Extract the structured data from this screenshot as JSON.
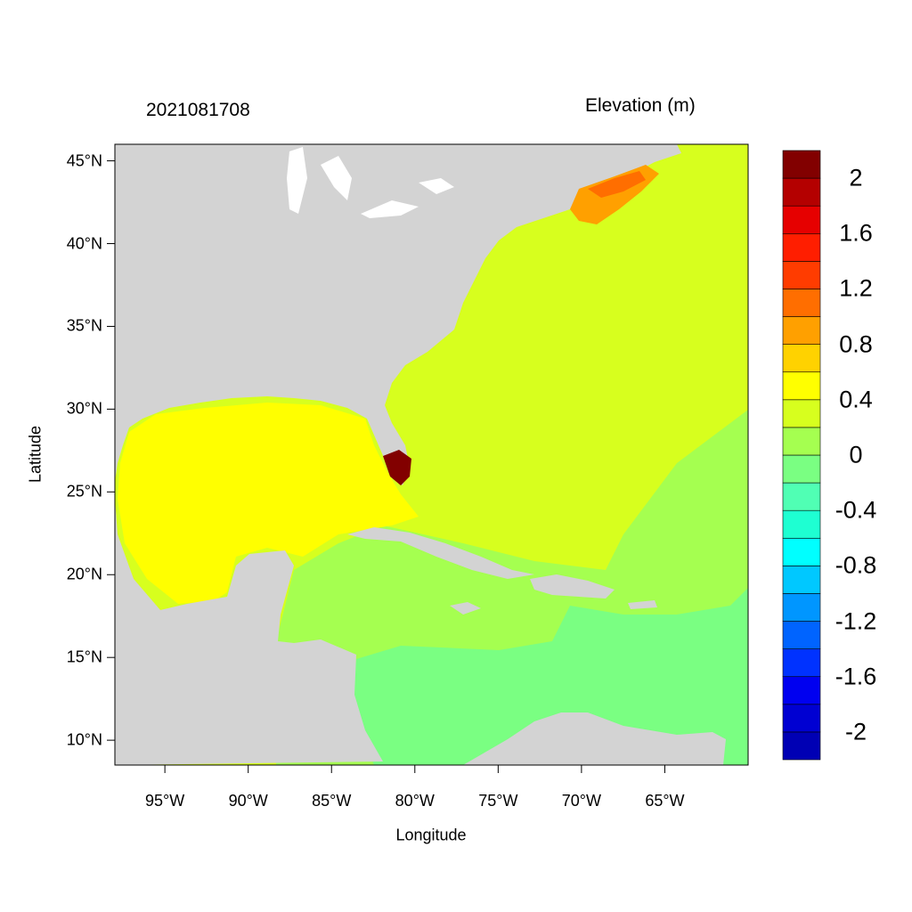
{
  "titles": {
    "left": "2021081708",
    "right": "Elevation (m)"
  },
  "axes": {
    "xlabel": "Longitude",
    "ylabel": "Latitude",
    "x_ticks": [
      {
        "lon": -95,
        "label": "95°W"
      },
      {
        "lon": -90,
        "label": "90°W"
      },
      {
        "lon": -85,
        "label": "85°W"
      },
      {
        "lon": -80,
        "label": "80°W"
      },
      {
        "lon": -75,
        "label": "75°W"
      },
      {
        "lon": -70,
        "label": "70°W"
      },
      {
        "lon": -65,
        "label": "65°W"
      }
    ],
    "y_ticks": [
      {
        "lat": 45,
        "label": "45°N"
      },
      {
        "lat": 40,
        "label": "40°N"
      },
      {
        "lat": 35,
        "label": "35°N"
      },
      {
        "lat": 30,
        "label": "30°N"
      },
      {
        "lat": 25,
        "label": "25°N"
      },
      {
        "lat": 20,
        "label": "20°N"
      },
      {
        "lat": 15,
        "label": "15°N"
      },
      {
        "lat": 10,
        "label": "10°N"
      }
    ],
    "lon_range": [
      -98,
      -60
    ],
    "lat_range": [
      8.5,
      46
    ]
  },
  "colorbar": {
    "colors": [
      "#0000b4",
      "#0000d2",
      "#0000f0",
      "#0032ff",
      "#0064ff",
      "#0096ff",
      "#00c8ff",
      "#00ffff",
      "#1effd2",
      "#50ffb4",
      "#7aff82",
      "#a5ff50",
      "#d7ff1e",
      "#ffff00",
      "#ffd200",
      "#ffa000",
      "#ff6e00",
      "#ff3c00",
      "#ff1e00",
      "#e60000",
      "#b40000",
      "#820000"
    ],
    "labels": [
      "2",
      "1.6",
      "1.2",
      "0.8",
      "0.4",
      "0",
      "-0.4",
      "-0.8",
      "-1.2",
      "-1.6",
      "-2"
    ]
  },
  "map_colors": {
    "land": "#d3d3d3",
    "gulf": "#ffff00",
    "atlantic": "#d7ff1e",
    "caribbean": "#a5ff50",
    "south_caribbean": "#7aff82",
    "maine_gulf": "#ffa000",
    "maine_core": "#ff6e00",
    "surge": "#820000"
  }
}
